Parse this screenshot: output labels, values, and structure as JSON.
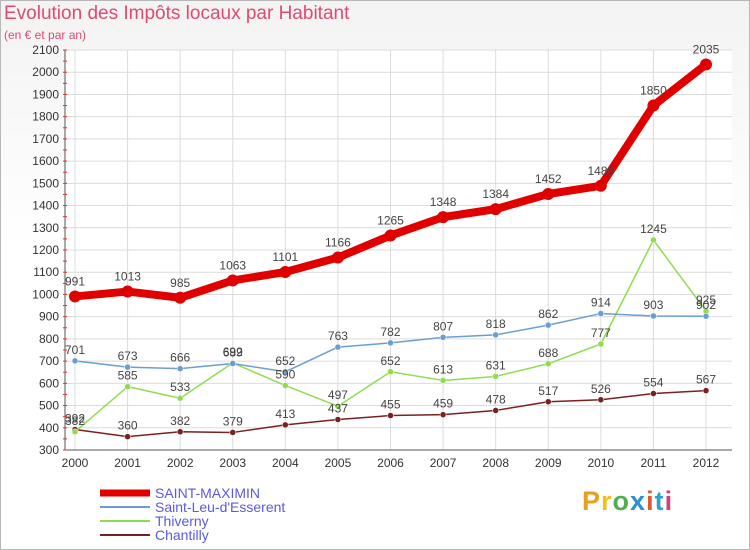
{
  "title": "Evolution des Impôts locaux par Habitant",
  "subtitle": "(en € et par an)",
  "logo": {
    "text": "Proxiti",
    "colors": [
      "#e8a020",
      "#f0c020",
      "#50b050",
      "#2d8fd0",
      "#e05a30",
      "#30a0d0",
      "#d04080"
    ]
  },
  "chart_data": {
    "type": "line",
    "x": [
      "2000",
      "2001",
      "2002",
      "2003",
      "2004",
      "2005",
      "2006",
      "2007",
      "2008",
      "2009",
      "2010",
      "2011",
      "2012"
    ],
    "ylim": [
      300,
      2100
    ],
    "yticks": [
      300,
      400,
      500,
      600,
      700,
      800,
      900,
      1000,
      1100,
      1200,
      1300,
      1400,
      1500,
      1600,
      1700,
      1800,
      1900,
      2000,
      2100
    ],
    "grid": true,
    "legend_position": "bottom-left",
    "series": [
      {
        "name": "SAINT-MAXIMIN",
        "color": "#e00000",
        "width": 8,
        "values": [
          991,
          1013,
          985,
          1063,
          1101,
          1166,
          1265,
          1348,
          1384,
          1452,
          1489,
          1850,
          2035
        ],
        "labels": [
          "991",
          "1013",
          "985",
          "1063",
          "1101",
          "1166",
          "1265",
          "1348",
          "1384",
          "1452",
          "1489",
          "1850",
          "2035"
        ]
      },
      {
        "name": "Saint-Leu-d'Esserent",
        "color": "#6a9ed0",
        "width": 1.5,
        "values": [
          701,
          673,
          666,
          689,
          652,
          763,
          782,
          807,
          818,
          862,
          914,
          903,
          902
        ],
        "labels": [
          "701",
          "673",
          "666",
          "689",
          "652",
          "763",
          "782",
          "807",
          "818",
          "862",
          "914",
          "903",
          "902"
        ]
      },
      {
        "name": "Thiverny",
        "color": "#90dc50",
        "width": 1.5,
        "values": [
          382,
          585,
          533,
          692,
          590,
          497,
          652,
          613,
          631,
          688,
          777,
          1245,
          925
        ],
        "labels": [
          "382",
          "585",
          "533",
          "692",
          "590",
          "497",
          "652",
          "613",
          "631",
          "688",
          "777",
          "1245",
          "925"
        ]
      },
      {
        "name": "Chantilly",
        "color": "#7a2020",
        "width": 1.5,
        "values": [
          392,
          360,
          382,
          379,
          413,
          437,
          455,
          459,
          478,
          517,
          526,
          554,
          567
        ],
        "labels": [
          "392",
          "360",
          "382",
          "379",
          "413",
          "437",
          "455",
          "459",
          "478",
          "517",
          "526",
          "554",
          "567"
        ]
      }
    ]
  }
}
